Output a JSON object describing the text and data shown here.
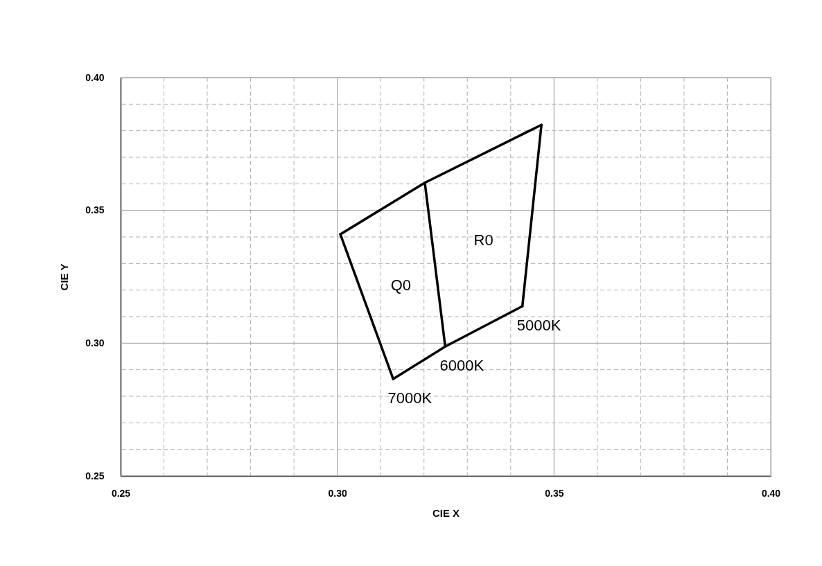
{
  "chart_data": {
    "type": "line",
    "xlabel": "CIE X",
    "ylabel": "CIE Y",
    "series": [
      {
        "color": "#000000",
        "x": [
          0.3007,
          0.3202,
          0.3471
        ],
        "values": [
          0.341,
          0.3604,
          0.3822
        ]
      },
      {
        "color": "#000000",
        "x": [
          0.3471,
          0.3427
        ],
        "values": [
          0.3822,
          0.3139
        ]
      },
      {
        "color": "#000000",
        "x": [
          0.3129,
          0.3249,
          0.3427
        ],
        "values": [
          0.2865,
          0.2987,
          0.3139
        ]
      },
      {
        "color": "#000000",
        "x": [
          0.3007,
          0.3129
        ],
        "values": [
          0.341,
          0.2865
        ]
      },
      {
        "color": "#000000",
        "x": [
          0.3202,
          0.3249
        ],
        "values": [
          0.3604,
          0.2987
        ]
      }
    ],
    "xlim": [
      0.25,
      0.4
    ],
    "ylim": [
      0.25,
      0.4
    ],
    "xticks": [
      {
        "value": 0.25,
        "label": "0.25"
      },
      {
        "value": 0.26,
        "label": null
      },
      {
        "value": 0.27,
        "label": null
      },
      {
        "value": 0.28,
        "label": null
      },
      {
        "value": 0.29,
        "label": null
      },
      {
        "value": 0.3,
        "label": "0.30"
      },
      {
        "value": 0.31,
        "label": null
      },
      {
        "value": 0.32,
        "label": null
      },
      {
        "value": 0.33,
        "label": null
      },
      {
        "value": 0.34,
        "label": null
      },
      {
        "value": 0.35,
        "label": "0.35"
      },
      {
        "value": 0.36,
        "label": null
      },
      {
        "value": 0.37,
        "label": null
      },
      {
        "value": 0.38,
        "label": null
      },
      {
        "value": 0.39,
        "label": null
      },
      {
        "value": 0.4,
        "label": "0.40"
      }
    ],
    "yticks": [
      {
        "value": 0.25,
        "label": "0.25"
      },
      {
        "value": 0.26,
        "label": null
      },
      {
        "value": 0.27,
        "label": null
      },
      {
        "value": 0.28,
        "label": null
      },
      {
        "value": 0.29,
        "label": null
      },
      {
        "value": 0.3,
        "label": "0.30"
      },
      {
        "value": 0.31,
        "label": null
      },
      {
        "value": 0.32,
        "label": null
      },
      {
        "value": 0.33,
        "label": null
      },
      {
        "value": 0.34,
        "label": null
      },
      {
        "value": 0.35,
        "label": "0.35"
      },
      {
        "value": 0.36,
        "label": null
      },
      {
        "value": 0.37,
        "label": null
      },
      {
        "value": 0.38,
        "label": null
      },
      {
        "value": 0.39,
        "label": null
      },
      {
        "value": 0.4,
        "label": "0.40"
      }
    ],
    "grid": true,
    "marker": "none",
    "line_style": "solid",
    "annotations": [
      "Q0",
      "R0",
      {
        "text": "5000K",
        "x": 0.3427,
        "y": 0.3139
      },
      {
        "text": "6000K",
        "x": 0.3249,
        "y": 0.2987
      },
      {
        "text": "7000K",
        "x": 0.3129,
        "y": 0.2865
      }
    ]
  }
}
